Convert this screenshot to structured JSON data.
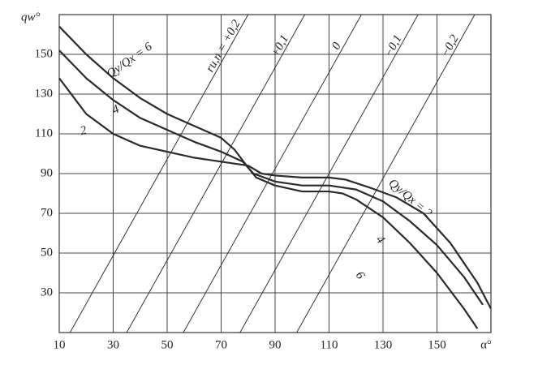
{
  "chart_data": {
    "type": "line",
    "xlabel": "α°",
    "ylabel": "qw°",
    "xlim": [
      10,
      170
    ],
    "ylim": [
      10,
      170
    ],
    "xticks": [
      10,
      30,
      50,
      70,
      90,
      110,
      130,
      150
    ],
    "yticks": [
      30,
      50,
      70,
      90,
      110,
      130,
      150
    ],
    "grid": true,
    "series": [
      {
        "color": "#2a2a2a",
        "x": [
          10,
          20,
          30,
          40,
          50,
          60,
          70,
          75,
          80,
          83,
          90,
          100,
          110,
          115,
          120,
          130,
          140,
          150,
          160,
          165
        ],
        "values": [
          164,
          150,
          138,
          128,
          120,
          114,
          108,
          102,
          93,
          88,
          84,
          81,
          81,
          80,
          77,
          68,
          55,
          40,
          22,
          12
        ]
      },
      {
        "color": "#2a2a2a",
        "x": [
          10,
          20,
          30,
          40,
          50,
          60,
          70,
          78,
          82,
          90,
          100,
          110,
          120,
          130,
          140,
          150,
          160,
          167
        ],
        "values": [
          152,
          138,
          127,
          118,
          112,
          106,
          101,
          96,
          90,
          86,
          84,
          84,
          82,
          76,
          66,
          54,
          38,
          24
        ]
      },
      {
        "color": "#2a2a2a",
        "x": [
          10,
          20,
          30,
          40,
          50,
          60,
          70,
          80,
          85,
          90,
          100,
          110,
          116,
          125,
          135,
          145,
          155,
          165,
          170
        ],
        "values": [
          138,
          120,
          110,
          104,
          101,
          98,
          96,
          94,
          90,
          89,
          88,
          88,
          87,
          83,
          78,
          70,
          55,
          35,
          22
        ]
      }
    ],
    "curve_labels": [
      "Qy/Qx = 6",
      "4",
      "2",
      "Qy/Qx = 2",
      "4",
      "6"
    ],
    "reference_lines": [
      {
        "label": "ru,n = +0,2",
        "x": [
          14,
          80
        ],
        "y": [
          10,
          170
        ]
      },
      {
        "label": "+0,1",
        "x": [
          35,
          101
        ],
        "y": [
          10,
          170
        ]
      },
      {
        "label": "0",
        "x": [
          56,
          122
        ],
        "y": [
          10,
          170
        ]
      },
      {
        "label": "−0,1",
        "x": [
          77,
          143
        ],
        "y": [
          10,
          170
        ]
      },
      {
        "label": "−0,2",
        "x": [
          98,
          164
        ],
        "y": [
          10,
          170
        ]
      }
    ]
  }
}
